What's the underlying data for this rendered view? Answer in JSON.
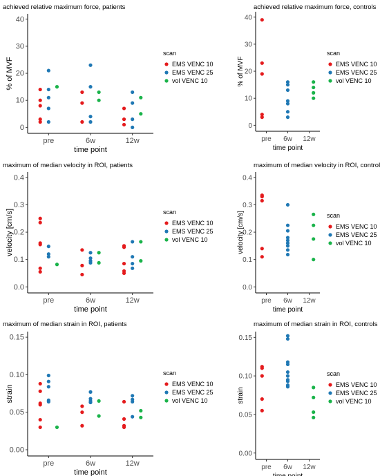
{
  "colors": {
    "EMS VENC 10": "#e41a1c",
    "EMS VENC 25": "#1f78b4",
    "vol VENC 10": "#1ab34a",
    "axis": "#000000",
    "tick_label": "#4d4d4d"
  },
  "chart_data": [
    {
      "type": "scatter",
      "title": "achieved relative maximum force, patients",
      "xlabel": "time point",
      "ylabel": "% of MVF",
      "categories": [
        "pre",
        "6w",
        "12w"
      ],
      "ylim": [
        0,
        40
      ],
      "yticks": [
        "0",
        "10",
        "20",
        "30",
        "40"
      ],
      "legend_title": "scan",
      "legend_position": "right",
      "grid": false,
      "series": [
        {
          "name": "EMS VENC 10",
          "points": [
            [
              "pre",
              14
            ],
            [
              "pre",
              10
            ],
            [
              "pre",
              8
            ],
            [
              "pre",
              3
            ],
            [
              "pre",
              2
            ],
            [
              "6w",
              13
            ],
            [
              "6w",
              9
            ],
            [
              "6w",
              2
            ],
            [
              "12w",
              7
            ],
            [
              "12w",
              3
            ],
            [
              "12w",
              1
            ]
          ]
        },
        {
          "name": "EMS VENC 25",
          "points": [
            [
              "pre",
              21
            ],
            [
              "pre",
              14
            ],
            [
              "pre",
              11
            ],
            [
              "pre",
              7
            ],
            [
              "pre",
              2
            ],
            [
              "6w",
              23
            ],
            [
              "6w",
              15
            ],
            [
              "6w",
              4
            ],
            [
              "6w",
              2
            ],
            [
              "12w",
              13
            ],
            [
              "12w",
              9
            ],
            [
              "12w",
              3
            ],
            [
              "12w",
              0
            ]
          ]
        },
        {
          "name": "vol VENC 10",
          "points": [
            [
              "pre",
              15
            ],
            [
              "6w",
              13
            ],
            [
              "6w",
              10
            ],
            [
              "12w",
              11
            ],
            [
              "12w",
              5
            ]
          ]
        }
      ]
    },
    {
      "type": "scatter",
      "title": "achieved relative maximum force, controls",
      "xlabel": "time point",
      "ylabel": "% of MVF",
      "categories": [
        "pre",
        "6w",
        "12w"
      ],
      "ylim": [
        0,
        40
      ],
      "yticks": [
        "0",
        "10",
        "20",
        "30",
        "40"
      ],
      "legend_title": "scan",
      "legend_position": "right",
      "grid": false,
      "series": [
        {
          "name": "EMS VENC 10",
          "points": [
            [
              "pre",
              39
            ],
            [
              "pre",
              23
            ],
            [
              "pre",
              19
            ],
            [
              "pre",
              4
            ],
            [
              "pre",
              3
            ]
          ]
        },
        {
          "name": "EMS VENC 25",
          "points": [
            [
              "6w",
              16
            ],
            [
              "6w",
              15
            ],
            [
              "6w",
              13
            ],
            [
              "6w",
              9
            ],
            [
              "6w",
              8
            ],
            [
              "6w",
              5
            ],
            [
              "6w",
              3
            ]
          ]
        },
        {
          "name": "vol VENC 10",
          "points": [
            [
              "12w",
              16
            ],
            [
              "12w",
              14
            ],
            [
              "12w",
              12
            ],
            [
              "12w",
              10
            ]
          ]
        }
      ]
    },
    {
      "type": "scatter",
      "title": "maximum of median velocity in ROI, patients",
      "xlabel": "time point",
      "ylabel": "velocity [cm/s]",
      "categories": [
        "pre",
        "6w",
        "12w"
      ],
      "ylim": [
        0,
        0.4
      ],
      "yticks": [
        "0.0",
        "0.1",
        "0.2",
        "0.3",
        "0.4"
      ],
      "legend_title": "scan",
      "legend_position": "right",
      "grid": false,
      "series": [
        {
          "name": "EMS VENC 10",
          "points": [
            [
              "pre",
              0.25
            ],
            [
              "pre",
              0.235
            ],
            [
              "pre",
              0.16
            ],
            [
              "pre",
              0.155
            ],
            [
              "pre",
              0.068
            ],
            [
              "pre",
              0.055
            ],
            [
              "6w",
              0.135
            ],
            [
              "6w",
              0.078
            ],
            [
              "6w",
              0.045
            ],
            [
              "12w",
              0.15
            ],
            [
              "12w",
              0.145
            ],
            [
              "12w",
              0.085
            ],
            [
              "12w",
              0.058
            ],
            [
              "12w",
              0.05
            ]
          ]
        },
        {
          "name": "EMS VENC 25",
          "points": [
            [
              "pre",
              0.148
            ],
            [
              "pre",
              0.12
            ],
            [
              "pre",
              0.11
            ],
            [
              "6w",
              0.125
            ],
            [
              "6w",
              0.105
            ],
            [
              "6w",
              0.095
            ],
            [
              "6w",
              0.088
            ],
            [
              "12w",
              0.165
            ],
            [
              "12w",
              0.11
            ],
            [
              "12w",
              0.085
            ],
            [
              "12w",
              0.068
            ]
          ]
        },
        {
          "name": "vol VENC 10",
          "points": [
            [
              "pre",
              0.082
            ],
            [
              "6w",
              0.125
            ],
            [
              "6w",
              0.088
            ],
            [
              "12w",
              0.165
            ],
            [
              "12w",
              0.095
            ]
          ]
        }
      ]
    },
    {
      "type": "scatter",
      "title": "maximum of median velocity in ROI, controls",
      "xlabel": "time point",
      "ylabel": "velocity [cm/s]",
      "categories": [
        "pre",
        "6w",
        "12w"
      ],
      "ylim": [
        0,
        0.4
      ],
      "yticks": [
        "0.0",
        "0.1",
        "0.2",
        "0.3",
        "0.4"
      ],
      "legend_title": "scan",
      "legend_position": "right",
      "grid": false,
      "series": [
        {
          "name": "EMS VENC 10",
          "points": [
            [
              "pre",
              0.335
            ],
            [
              "pre",
              0.33
            ],
            [
              "pre",
              0.315
            ],
            [
              "pre",
              0.14
            ],
            [
              "pre",
              0.11
            ]
          ]
        },
        {
          "name": "EMS VENC 25",
          "points": [
            [
              "6w",
              0.3
            ],
            [
              "6w",
              0.225
            ],
            [
              "6w",
              0.205
            ],
            [
              "6w",
              0.18
            ],
            [
              "6w",
              0.17
            ],
            [
              "6w",
              0.16
            ],
            [
              "6w",
              0.15
            ],
            [
              "6w",
              0.135
            ],
            [
              "6w",
              0.118
            ]
          ]
        },
        {
          "name": "vol VENC 10",
          "points": [
            [
              "12w",
              0.265
            ],
            [
              "12w",
              0.225
            ],
            [
              "12w",
              0.175
            ],
            [
              "12w",
              0.1
            ]
          ]
        }
      ]
    },
    {
      "type": "scatter",
      "title": "maximum of median strain in ROI, patients",
      "xlabel": "time point",
      "ylabel": "strain",
      "categories": [
        "pre",
        "6w",
        "12w"
      ],
      "ylim": [
        0,
        0.15
      ],
      "yticks": [
        "0.00",
        "0.05",
        "0.10",
        "0.15"
      ],
      "legend_title": "scan",
      "legend_position": "right",
      "grid": false,
      "series": [
        {
          "name": "EMS VENC 10",
          "points": [
            [
              "pre",
              0.088
            ],
            [
              "pre",
              0.078
            ],
            [
              "pre",
              0.062
            ],
            [
              "pre",
              0.06
            ],
            [
              "pre",
              0.04
            ],
            [
              "pre",
              0.03
            ],
            [
              "6w",
              0.058
            ],
            [
              "6w",
              0.05
            ],
            [
              "6w",
              0.032
            ],
            [
              "12w",
              0.064
            ],
            [
              "12w",
              0.041
            ],
            [
              "12w",
              0.032
            ],
            [
              "12w",
              0.03
            ]
          ]
        },
        {
          "name": "EMS VENC 25",
          "points": [
            [
              "pre",
              0.099
            ],
            [
              "pre",
              0.091
            ],
            [
              "pre",
              0.084
            ],
            [
              "pre",
              0.066
            ],
            [
              "pre",
              0.064
            ],
            [
              "6w",
              0.077
            ],
            [
              "6w",
              0.068
            ],
            [
              "6w",
              0.065
            ],
            [
              "6w",
              0.063
            ],
            [
              "12w",
              0.072
            ],
            [
              "12w",
              0.067
            ],
            [
              "12w",
              0.064
            ],
            [
              "12w",
              0.044
            ]
          ]
        },
        {
          "name": "vol VENC 10",
          "points": [
            [
              "pre",
              0.03
            ],
            [
              "6w",
              0.065
            ],
            [
              "6w",
              0.045
            ],
            [
              "12w",
              0.052
            ],
            [
              "12w",
              0.043
            ]
          ]
        }
      ]
    },
    {
      "type": "scatter",
      "title": "maximum of median strain in ROI, controls",
      "xlabel": "time point",
      "ylabel": "strain",
      "categories": [
        "pre",
        "6w",
        "12w"
      ],
      "ylim": [
        0,
        0.15
      ],
      "yticks": [
        "0.00",
        "0.05",
        "0.10",
        "0.15"
      ],
      "legend_title": "scan",
      "legend_position": "right",
      "grid": false,
      "series": [
        {
          "name": "EMS VENC 10",
          "points": [
            [
              "pre",
              0.112
            ],
            [
              "pre",
              0.11
            ],
            [
              "pre",
              0.1
            ],
            [
              "pre",
              0.07
            ],
            [
              "pre",
              0.055
            ]
          ]
        },
        {
          "name": "EMS VENC 25",
          "points": [
            [
              "6w",
              0.152
            ],
            [
              "6w",
              0.148
            ],
            [
              "6w",
              0.118
            ],
            [
              "6w",
              0.115
            ],
            [
              "6w",
              0.105
            ],
            [
              "6w",
              0.1
            ],
            [
              "6w",
              0.095
            ],
            [
              "6w",
              0.093
            ],
            [
              "6w",
              0.088
            ],
            [
              "6w",
              0.086
            ]
          ]
        },
        {
          "name": "vol VENC 10",
          "points": [
            [
              "12w",
              0.085
            ],
            [
              "12w",
              0.072
            ],
            [
              "12w",
              0.053
            ],
            [
              "12w",
              0.046
            ]
          ]
        }
      ]
    }
  ]
}
